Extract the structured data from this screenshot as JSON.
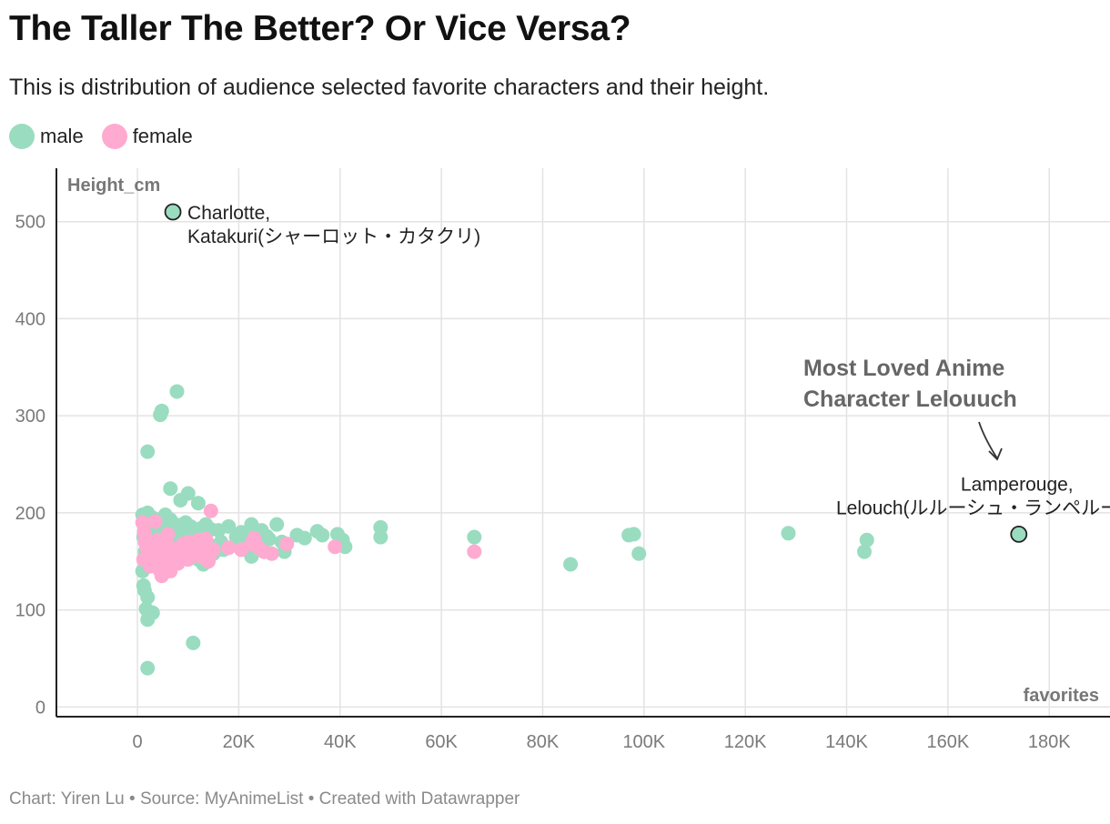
{
  "title": "The Taller The Better? Or Vice Versa?",
  "subtitle": "This is distribution of audience selected favorite characters and their height.",
  "legend": [
    {
      "label": "male",
      "color": "#9adcc0"
    },
    {
      "label": "female",
      "color": "#ffaad0"
    }
  ],
  "footer": "Chart: Yiren Lu • Source: MyAnimeList • Created with Datawrapper",
  "chart_data": {
    "type": "scatter",
    "ylabel": "Height_cm",
    "xlabel": "favorites",
    "xlim": [
      -16000,
      192000
    ],
    "ylim": [
      -10,
      555
    ],
    "xticks": [
      0,
      20000,
      40000,
      60000,
      80000,
      100000,
      120000,
      140000,
      160000,
      180000
    ],
    "xtick_labels": [
      "0",
      "20K",
      "40K",
      "60K",
      "80K",
      "100K",
      "120K",
      "140K",
      "160K",
      "180K"
    ],
    "yticks": [
      0,
      100,
      200,
      300,
      400,
      500
    ],
    "ytick_labels": [
      "0",
      "100",
      "200",
      "300",
      "400",
      "500"
    ],
    "series": [
      {
        "name": "male",
        "color": "#9adcc0",
        "points": [
          [
            1000,
            198
          ],
          [
            1500,
            190
          ],
          [
            2000,
            200
          ],
          [
            2500,
            185
          ],
          [
            3000,
            195
          ],
          [
            3500,
            190
          ],
          [
            4000,
            183
          ],
          [
            4500,
            178
          ],
          [
            5500,
            198
          ],
          [
            6500,
            193
          ],
          [
            7500,
            188
          ],
          [
            8500,
            185
          ],
          [
            9500,
            190
          ],
          [
            10500,
            186
          ],
          [
            11500,
            180
          ],
          [
            12500,
            184
          ],
          [
            13500,
            188
          ],
          [
            14500,
            183
          ],
          [
            16000,
            182
          ],
          [
            18000,
            186
          ],
          [
            20500,
            180
          ],
          [
            22500,
            188
          ],
          [
            24500,
            182
          ],
          [
            27500,
            188
          ],
          [
            1200,
            175
          ],
          [
            2200,
            168
          ],
          [
            3200,
            172
          ],
          [
            4200,
            165
          ],
          [
            5200,
            178
          ],
          [
            6200,
            170
          ],
          [
            7200,
            175
          ],
          [
            8200,
            168
          ],
          [
            9200,
            172
          ],
          [
            10200,
            176
          ],
          [
            11200,
            170
          ],
          [
            12200,
            174
          ],
          [
            14000,
            168
          ],
          [
            16500,
            170
          ],
          [
            19500,
            175
          ],
          [
            21500,
            171
          ],
          [
            25500,
            176
          ],
          [
            28500,
            170
          ],
          [
            31500,
            177
          ],
          [
            35500,
            181
          ],
          [
            36500,
            177
          ],
          [
            39500,
            178
          ],
          [
            40500,
            172
          ],
          [
            48000,
            185
          ],
          [
            48000,
            175
          ],
          [
            1500,
            160
          ],
          [
            2500,
            155
          ],
          [
            3500,
            158
          ],
          [
            4500,
            150
          ],
          [
            5500,
            162
          ],
          [
            7000,
            155
          ],
          [
            8000,
            152
          ],
          [
            9000,
            160
          ],
          [
            10500,
            157
          ],
          [
            12000,
            152
          ],
          [
            13000,
            147
          ],
          [
            15000,
            158
          ],
          [
            17000,
            162
          ],
          [
            20500,
            168
          ],
          [
            22500,
            155
          ],
          [
            25000,
            160
          ],
          [
            29000,
            160
          ],
          [
            41000,
            165
          ],
          [
            66500,
            175
          ],
          [
            85500,
            147
          ],
          [
            97000,
            177
          ],
          [
            98000,
            178
          ],
          [
            99000,
            158
          ],
          [
            128500,
            179
          ],
          [
            143500,
            160
          ],
          [
            144000,
            172
          ],
          [
            1000,
            140
          ],
          [
            1200,
            125
          ],
          [
            1400,
            120
          ],
          [
            1700,
            101
          ],
          [
            2000,
            113
          ],
          [
            2000,
            90
          ],
          [
            3000,
            97
          ],
          [
            2000,
            40
          ],
          [
            11000,
            66
          ],
          [
            2000,
            263
          ],
          [
            4500,
            301
          ],
          [
            4800,
            305
          ],
          [
            7800,
            325
          ],
          [
            6500,
            225
          ],
          [
            8500,
            213
          ],
          [
            10000,
            220
          ],
          [
            12000,
            210
          ],
          [
            5000,
            190
          ],
          [
            9800,
            182
          ],
          [
            23000,
            176
          ],
          [
            26000,
            173
          ],
          [
            33000,
            174
          ]
        ]
      },
      {
        "name": "female",
        "color": "#ffaad0",
        "points": [
          [
            1000,
            190
          ],
          [
            1300,
            180
          ],
          [
            1500,
            170
          ],
          [
            1800,
            165
          ],
          [
            2000,
            172
          ],
          [
            2300,
            160
          ],
          [
            2500,
            155
          ],
          [
            2800,
            168
          ],
          [
            3000,
            162
          ],
          [
            3300,
            158
          ],
          [
            3500,
            165
          ],
          [
            3800,
            150
          ],
          [
            4000,
            145
          ],
          [
            4300,
            155
          ],
          [
            4500,
            140
          ],
          [
            4800,
            135
          ],
          [
            5000,
            160
          ],
          [
            5300,
            150
          ],
          [
            5500,
            170
          ],
          [
            5800,
            145
          ],
          [
            6000,
            155
          ],
          [
            6300,
            165
          ],
          [
            6500,
            140
          ],
          [
            7000,
            158
          ],
          [
            7500,
            150
          ],
          [
            8000,
            162
          ],
          [
            8500,
            155
          ],
          [
            9000,
            168
          ],
          [
            9500,
            160
          ],
          [
            10000,
            152
          ],
          [
            10500,
            165
          ],
          [
            11000,
            158
          ],
          [
            12000,
            160
          ],
          [
            12500,
            155
          ],
          [
            13000,
            168
          ],
          [
            13500,
            173
          ],
          [
            14000,
            150
          ],
          [
            14500,
            158
          ],
          [
            15000,
            162
          ],
          [
            18000,
            164
          ],
          [
            20500,
            162
          ],
          [
            22500,
            168
          ],
          [
            23000,
            174
          ],
          [
            24000,
            164
          ],
          [
            25000,
            160
          ],
          [
            26500,
            158
          ],
          [
            29500,
            168
          ],
          [
            39000,
            165
          ],
          [
            66500,
            160
          ],
          [
            14500,
            202
          ],
          [
            3500,
            191
          ],
          [
            1200,
            152
          ],
          [
            2500,
            145
          ],
          [
            4000,
            172
          ],
          [
            6000,
            178
          ],
          [
            8000,
            148
          ],
          [
            10000,
            170
          ],
          [
            12000,
            172
          ]
        ]
      }
    ],
    "annotations": [
      {
        "label_lines": [
          "Charlotte,",
          "Katakuri(シャーロット・カタクリ)"
        ],
        "x": 7000,
        "y": 510
      },
      {
        "label_lines": [
          "Lamperouge,",
          "Lelouch(ルルーシュ・ランペルージ)"
        ],
        "x": 174000,
        "y": 178
      },
      {
        "label_lines": [
          "Most Loved Anime",
          "Character Lelouuch"
        ]
      }
    ]
  }
}
